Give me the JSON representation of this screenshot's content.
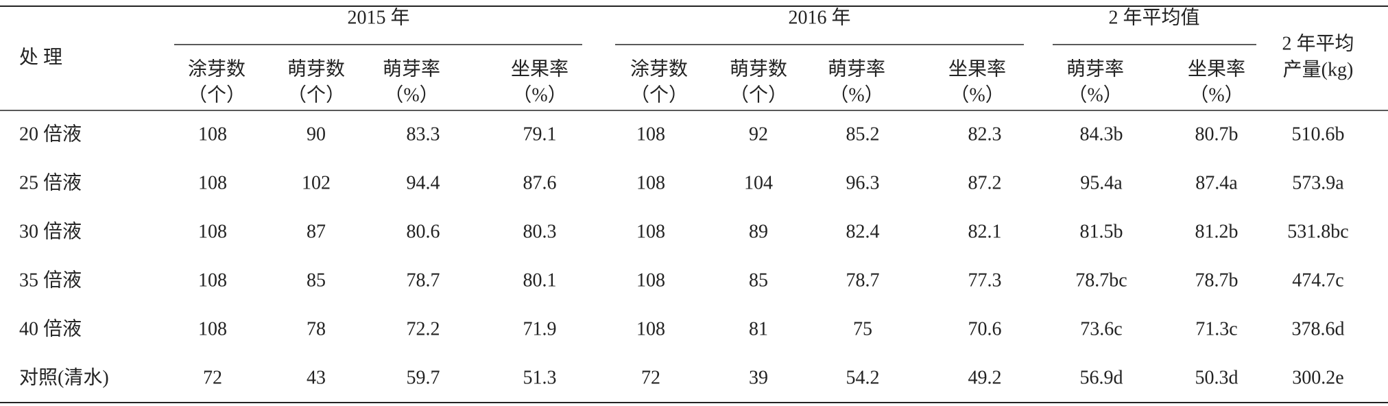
{
  "table": {
    "row_header": "处 理",
    "group_headers": [
      "2015 年",
      "2016 年",
      "2 年平均值"
    ],
    "yield_header": [
      "2 年平均",
      "产量(kg)"
    ],
    "sub_headers": [
      [
        "涂芽数",
        "（个）"
      ],
      [
        "萌芽数",
        "（个）"
      ],
      [
        "萌芽率",
        "（%）"
      ],
      [
        "坐果率",
        "（%）"
      ],
      [
        "涂芽数",
        "（个）"
      ],
      [
        "萌芽数",
        "（个）"
      ],
      [
        "萌芽率",
        "（%）"
      ],
      [
        "坐果率",
        "（%）"
      ],
      [
        "萌芽率",
        "（%）"
      ],
      [
        "坐果率",
        "（%）"
      ]
    ],
    "rows": [
      [
        "20 倍液",
        "108",
        "90",
        "83.3",
        "79.1",
        "108",
        "92",
        "85.2",
        "82.3",
        "84.3b",
        "80.7b",
        "510.6b"
      ],
      [
        "25 倍液",
        "108",
        "102",
        "94.4",
        "87.6",
        "108",
        "104",
        "96.3",
        "87.2",
        "95.4a",
        "87.4a",
        "573.9a"
      ],
      [
        "30 倍液",
        "108",
        "87",
        "80.6",
        "80.3",
        "108",
        "89",
        "82.4",
        "82.1",
        "81.5b",
        "81.2b",
        "531.8bc"
      ],
      [
        "35 倍液",
        "108",
        "85",
        "78.7",
        "80.1",
        "108",
        "85",
        "78.7",
        "77.3",
        "78.7bc",
        "78.7b",
        "474.7c"
      ],
      [
        "40 倍液",
        "108",
        "78",
        "72.2",
        "71.9",
        "108",
        "81",
        "75",
        "70.6",
        "73.6c",
        "71.3c",
        "378.6d"
      ],
      [
        "对照(清水)",
        "72",
        "43",
        "59.7",
        "51.3",
        "72",
        "39",
        "54.2",
        "49.2",
        "56.9d",
        "50.3d",
        "300.2e"
      ]
    ]
  }
}
